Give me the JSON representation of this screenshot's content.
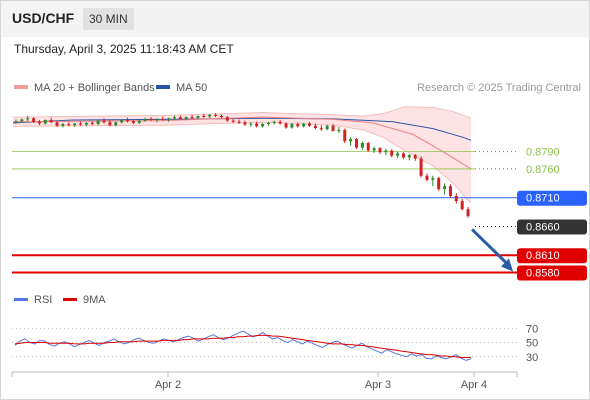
{
  "header": {
    "symbol": "USD/CHF",
    "timeframe": "30 MIN",
    "timestamp": "Thursday, April 3, 2025 11:18:43 AM CET"
  },
  "legend": {
    "items": [
      "MA 20 + Bollinger Bands",
      "MA 50"
    ],
    "source": "Research © 2025 Trading Central"
  },
  "rsi_legend": {
    "items": [
      "RSI",
      "9MA"
    ]
  },
  "colors": {
    "ma20": "#f08080",
    "ma50": "#2955a8",
    "bollinger_fill": "#fde0e0",
    "up": "#2e8b2e",
    "down": "#d62020",
    "resistance": "#8bc34a",
    "pivot": "#2962ff",
    "support": "#e00000",
    "last": "#333333",
    "rsi": "#5577dd",
    "rsi_ma": "#e00000",
    "arrow": "#2b5ca8"
  },
  "chart_data": [
    {
      "type": "candlestick",
      "x_ticks": [
        "Apr 2",
        "Apr 3",
        "Apr 4"
      ],
      "y_range": [
        0.856,
        0.8885
      ],
      "candles": [
        [
          0.8842,
          0.8846,
          0.8838,
          0.8843
        ],
        [
          0.8843,
          0.8848,
          0.884,
          0.8846
        ],
        [
          0.8846,
          0.8852,
          0.8843,
          0.8848
        ],
        [
          0.8848,
          0.885,
          0.884,
          0.8842
        ],
        [
          0.8842,
          0.8845,
          0.8836,
          0.8839
        ],
        [
          0.8839,
          0.8846,
          0.8837,
          0.8845
        ],
        [
          0.8845,
          0.8849,
          0.884,
          0.8841
        ],
        [
          0.8841,
          0.8843,
          0.8833,
          0.8835
        ],
        [
          0.8835,
          0.884,
          0.8832,
          0.8838
        ],
        [
          0.8838,
          0.8841,
          0.8834,
          0.8836
        ],
        [
          0.8836,
          0.884,
          0.8833,
          0.8839
        ],
        [
          0.8839,
          0.8842,
          0.8835,
          0.8837
        ],
        [
          0.8837,
          0.8841,
          0.8834,
          0.884
        ],
        [
          0.884,
          0.8843,
          0.8836,
          0.8838
        ],
        [
          0.8838,
          0.8845,
          0.8836,
          0.8844
        ],
        [
          0.8844,
          0.8848,
          0.8839,
          0.8841
        ],
        [
          0.8841,
          0.8845,
          0.8834,
          0.8836
        ],
        [
          0.8836,
          0.8842,
          0.8834,
          0.8841
        ],
        [
          0.8841,
          0.8846,
          0.8839,
          0.8845
        ],
        [
          0.8845,
          0.8849,
          0.8841,
          0.8843
        ],
        [
          0.8843,
          0.8846,
          0.8838,
          0.884
        ],
        [
          0.884,
          0.8845,
          0.8838,
          0.8844
        ],
        [
          0.8844,
          0.8849,
          0.8842,
          0.8847
        ],
        [
          0.8847,
          0.885,
          0.8843,
          0.8845
        ],
        [
          0.8845,
          0.8848,
          0.8841,
          0.8847
        ],
        [
          0.8847,
          0.8851,
          0.8844,
          0.8846
        ],
        [
          0.8846,
          0.8849,
          0.8842,
          0.8848
        ],
        [
          0.8848,
          0.8853,
          0.8845,
          0.885
        ],
        [
          0.885,
          0.8853,
          0.8846,
          0.8847
        ],
        [
          0.8847,
          0.8851,
          0.8845,
          0.885
        ],
        [
          0.885,
          0.8854,
          0.8847,
          0.8849
        ],
        [
          0.8849,
          0.8853,
          0.8846,
          0.8852
        ],
        [
          0.8852,
          0.8856,
          0.8849,
          0.8851
        ],
        [
          0.8851,
          0.8855,
          0.8848,
          0.8854
        ],
        [
          0.8854,
          0.8857,
          0.885,
          0.8852
        ],
        [
          0.8852,
          0.8855,
          0.8848,
          0.885
        ],
        [
          0.885,
          0.8852,
          0.8842,
          0.8844
        ],
        [
          0.8844,
          0.8848,
          0.884,
          0.8842
        ],
        [
          0.8842,
          0.8846,
          0.8838,
          0.8841
        ],
        [
          0.8841,
          0.8844,
          0.8835,
          0.8837
        ],
        [
          0.8837,
          0.8841,
          0.8833,
          0.8839
        ],
        [
          0.8839,
          0.8842,
          0.8832,
          0.8834
        ],
        [
          0.8834,
          0.884,
          0.8832,
          0.8838
        ],
        [
          0.8838,
          0.8842,
          0.8835,
          0.884
        ],
        [
          0.884,
          0.8844,
          0.8837,
          0.8842
        ],
        [
          0.8842,
          0.8845,
          0.8837,
          0.8839
        ],
        [
          0.8839,
          0.8841,
          0.883,
          0.8832
        ],
        [
          0.8832,
          0.884,
          0.883,
          0.8838
        ],
        [
          0.8838,
          0.8841,
          0.8832,
          0.8834
        ],
        [
          0.8834,
          0.884,
          0.8832,
          0.8839
        ],
        [
          0.8839,
          0.8842,
          0.8833,
          0.8835
        ],
        [
          0.8835,
          0.8839,
          0.8829,
          0.8831
        ],
        [
          0.8831,
          0.8836,
          0.8826,
          0.8829
        ],
        [
          0.8829,
          0.8837,
          0.8827,
          0.8835
        ],
        [
          0.8835,
          0.8838,
          0.8825,
          0.8826
        ],
        [
          0.8826,
          0.8833,
          0.8822,
          0.8828
        ],
        [
          0.8828,
          0.883,
          0.8805,
          0.8808
        ],
        [
          0.8808,
          0.8815,
          0.88,
          0.8812
        ],
        [
          0.8812,
          0.8814,
          0.8795,
          0.8797
        ],
        [
          0.8797,
          0.8808,
          0.8793,
          0.8805
        ],
        [
          0.8805,
          0.8807,
          0.879,
          0.8792
        ],
        [
          0.8792,
          0.8799,
          0.8788,
          0.8796
        ],
        [
          0.8796,
          0.8798,
          0.8786,
          0.8789
        ],
        [
          0.8789,
          0.8795,
          0.8784,
          0.8792
        ],
        [
          0.8792,
          0.8794,
          0.878,
          0.8783
        ],
        [
          0.8783,
          0.879,
          0.8779,
          0.8787
        ],
        [
          0.8787,
          0.8789,
          0.8777,
          0.878
        ],
        [
          0.878,
          0.8786,
          0.8775,
          0.8784
        ],
        [
          0.8784,
          0.8786,
          0.8774,
          0.8778
        ],
        [
          0.8778,
          0.8782,
          0.8745,
          0.8748
        ],
        [
          0.8748,
          0.8752,
          0.8738,
          0.8741
        ],
        [
          0.8741,
          0.8748,
          0.873,
          0.8744
        ],
        [
          0.8744,
          0.8746,
          0.8722,
          0.8725
        ],
        [
          0.8725,
          0.8735,
          0.8715,
          0.873
        ],
        [
          0.873,
          0.8733,
          0.871,
          0.8713
        ],
        [
          0.8713,
          0.8718,
          0.87,
          0.8704
        ],
        [
          0.8704,
          0.8708,
          0.8688,
          0.869
        ],
        [
          0.869,
          0.8694,
          0.8675,
          0.8678
        ]
      ],
      "ma50": [
        [
          0,
          0.884
        ],
        [
          60,
          0.8845
        ],
        [
          150,
          0.8846
        ],
        [
          250,
          0.8848
        ],
        [
          320,
          0.8847
        ],
        [
          380,
          0.8842
        ],
        [
          420,
          0.883
        ],
        [
          450,
          0.8815
        ],
        [
          458,
          0.881
        ]
      ],
      "ma20": [
        [
          0,
          0.8842
        ],
        [
          150,
          0.8844
        ],
        [
          250,
          0.885
        ],
        [
          320,
          0.8846
        ],
        [
          360,
          0.884
        ],
        [
          400,
          0.882
        ],
        [
          430,
          0.879
        ],
        [
          458,
          0.876
        ]
      ],
      "bollinger_upper": [
        [
          0,
          0.885
        ],
        [
          150,
          0.8853
        ],
        [
          250,
          0.8858
        ],
        [
          320,
          0.8854
        ],
        [
          350,
          0.8852
        ],
        [
          370,
          0.8856
        ],
        [
          392,
          0.8868
        ],
        [
          420,
          0.8867
        ],
        [
          440,
          0.886
        ],
        [
          458,
          0.8848
        ]
      ],
      "bollinger_lower": [
        [
          0,
          0.8834
        ],
        [
          150,
          0.8836
        ],
        [
          250,
          0.8841
        ],
        [
          320,
          0.8836
        ],
        [
          350,
          0.8828
        ],
        [
          370,
          0.8815
        ],
        [
          392,
          0.8792
        ],
        [
          420,
          0.8765
        ],
        [
          440,
          0.8735
        ],
        [
          458,
          0.87
        ]
      ],
      "levels": [
        {
          "value": "0.8790",
          "kind": "resistance"
        },
        {
          "value": "0.8760",
          "kind": "resistance"
        },
        {
          "value": "0.8710",
          "kind": "pivot"
        },
        {
          "value": "0.8660",
          "kind": "last"
        },
        {
          "value": "0.8610",
          "kind": "support"
        },
        {
          "value": "0.8580",
          "kind": "support"
        }
      ],
      "arrow": {
        "from": 0.866,
        "to": 0.858
      }
    },
    {
      "type": "line",
      "y_ticks": [
        "70",
        "50",
        "30"
      ],
      "ylim": [
        10,
        90
      ],
      "series": [
        {
          "name": "RSI",
          "values": [
            46,
            52,
            55,
            50,
            48,
            53,
            52,
            47,
            45,
            49,
            51,
            48,
            44,
            47,
            50,
            53,
            49,
            46,
            50,
            52,
            55,
            51,
            48,
            50,
            54,
            56,
            53,
            50,
            49,
            52,
            55,
            53,
            51,
            54,
            57,
            59,
            56,
            52,
            55,
            58,
            61,
            57,
            54,
            56,
            60,
            63,
            66,
            62,
            58,
            60,
            64,
            59,
            55,
            57,
            53,
            50,
            54,
            51,
            48,
            52,
            49,
            46,
            43,
            47,
            50,
            52,
            48,
            45,
            42,
            46,
            49,
            44,
            41,
            38,
            35,
            40,
            37,
            34,
            32,
            30,
            34,
            31,
            33,
            28,
            27,
            31,
            29,
            27,
            30,
            33,
            28,
            25,
            27
          ]
        },
        {
          "name": "9MA",
          "values": [
            48,
            49,
            50,
            50,
            50,
            50,
            50,
            49,
            49,
            49,
            49,
            49,
            48,
            48,
            48,
            49,
            49,
            49,
            49,
            50,
            50,
            51,
            51,
            51,
            51,
            52,
            52,
            52,
            52,
            52,
            53,
            53,
            53,
            53,
            54,
            54,
            55,
            55,
            55,
            55,
            56,
            56,
            56,
            57,
            57,
            58,
            58,
            59,
            59,
            60,
            60,
            60,
            59,
            59,
            58,
            57,
            56,
            55,
            54,
            53,
            52,
            51,
            50,
            49,
            48,
            48,
            48,
            47,
            47,
            46,
            46,
            45,
            44,
            43,
            42,
            41,
            40,
            39,
            38,
            37,
            36,
            35,
            34,
            33,
            33,
            32,
            31,
            31,
            30,
            30,
            29,
            29,
            29
          ]
        }
      ]
    }
  ]
}
